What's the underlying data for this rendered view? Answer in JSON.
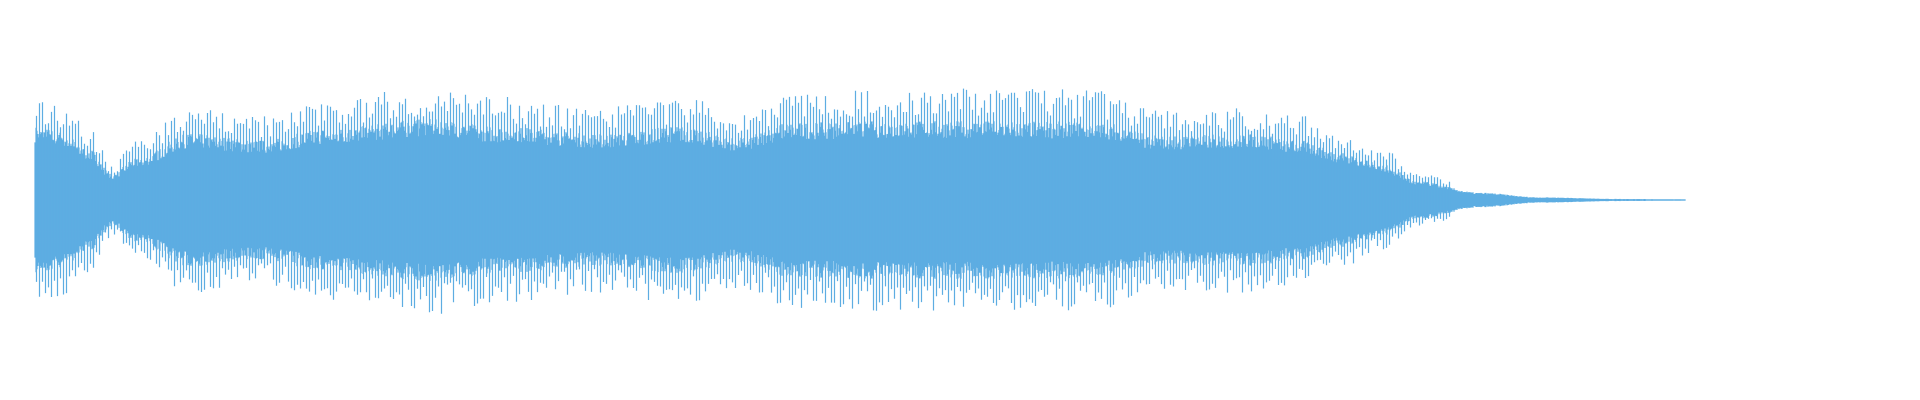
{
  "waveform": {
    "color": "#5dade2",
    "background": "#ffffff",
    "shape": "audio waveform, symmetric about center line, loud sustained body with fade-out tail"
  }
}
